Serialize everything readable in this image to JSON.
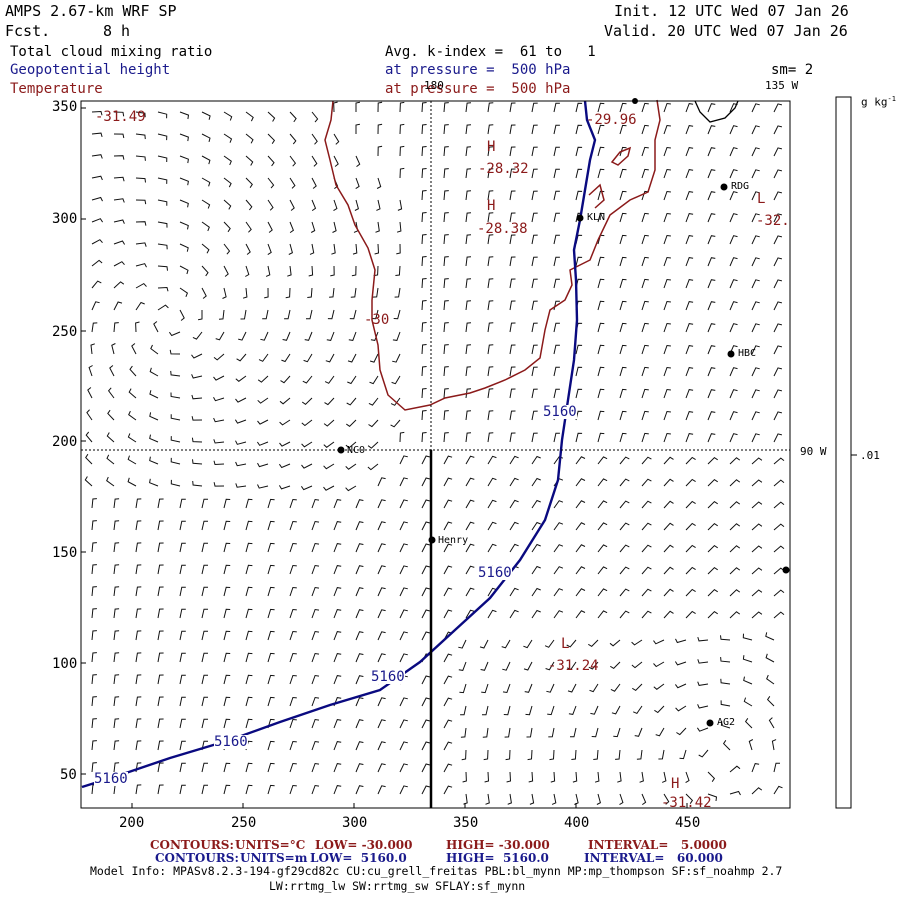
{
  "header": {
    "model": "AMPS 2.67-km WRF SP",
    "fcst_label": "Fcst.",
    "fcst_value": "8 h",
    "init": "Init. 12 UTC Wed 07 Jan 26",
    "valid": "Valid. 20 UTC Wed 07 Jan 26",
    "field1": "Total cloud mixing ratio",
    "field2": "Geopotential height",
    "field3": "Temperature",
    "avg_line": "Avg. k-index =  61 to   1",
    "pressure_blue": "at pressure =  500 hPa",
    "pressure_red": "at pressure =  500 hPa",
    "sm": "sm= 2"
  },
  "map": {
    "lon_180": "180",
    "lon_135": "135 W",
    "lon_90": "90 W",
    "y_ticks": [
      "350",
      "300",
      "250",
      "200",
      "150",
      "100",
      "50"
    ],
    "x_ticks": [
      "200",
      "250",
      "300",
      "350",
      "400",
      "450"
    ],
    "colorbar_unit": "g kg",
    "colorbar_unit_sup": "-1",
    "colorbar_value": ".01",
    "stations": {
      "nco": "NCO",
      "henry": "Henry",
      "kln": "KLN",
      "rdg": "RDG",
      "hbc": "HBC",
      "ag2": "AG2"
    },
    "contour_labels": {
      "temp_tl": "-31.49",
      "temp_h1": "-28.32",
      "temp_h2": "-28.38",
      "temp_top": "-29.96",
      "temp_r": "-32.",
      "temp_mid": "-30",
      "temp_low": "-31.24",
      "temp_bot": "-31.42",
      "gh1": "5160",
      "gh2": "5160",
      "gh3": "5160",
      "gh4": "5160",
      "gh5": "5160",
      "H": "H",
      "L": "L"
    }
  },
  "footer": {
    "line1_label": "CONTOURS:",
    "line1_units": "UNITS=°C",
    "line1_low": "LOW= -30.000",
    "line1_high": "HIGH= -30.000",
    "line1_interval": "INTERVAL=   5.0000",
    "line2_label": "CONTOURS:",
    "line2_units": "UNITS=m",
    "line2_low": "LOW=  5160.0",
    "line2_high": "HIGH=  5160.0",
    "line2_interval": "INTERVAL=   60.000",
    "model_info": "Model Info: MPASv8.2.3-194-gf29cd82c CU:cu_grell_freitas PBL:bl_mynn MP:mp_thompson SF:sf_noahmp 2.7",
    "model_info2": "LW:rrtmg_lw SW:rrtmg_sw SFLAY:sf_mynn"
  },
  "colors": {
    "temperature": "#8b1a1a",
    "geopotential": "#1a1a8c",
    "axes": "#000000"
  }
}
